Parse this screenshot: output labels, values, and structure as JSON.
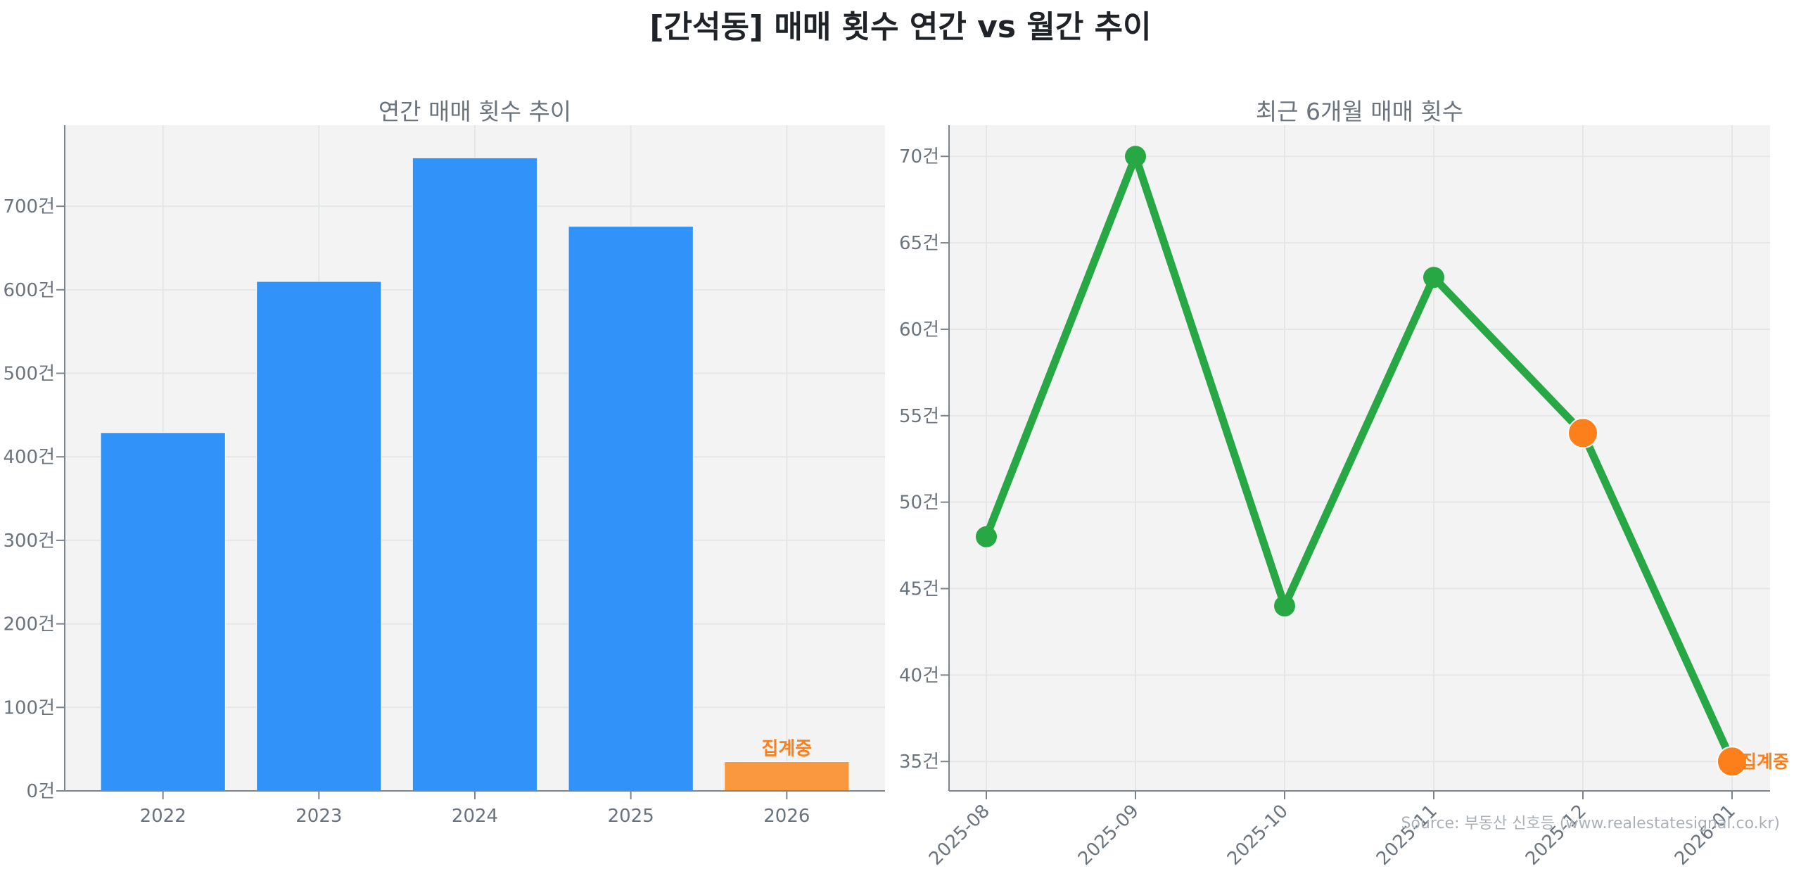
{
  "suptitle": "[간석동] 매매 횟수 연간 vs 월간 추이",
  "source": "Source: 부동산 신호등 (www.realestatesignal.co.kr)",
  "colors": {
    "bar": "#3192fa",
    "bar_partial": "#fa983f",
    "line": "#28a745",
    "marker_highlight": "#fd7f1b",
    "annotation": "#fd7f1b",
    "axes_bg": "#f3f3f3",
    "grid": "#e4e6e8",
    "tick_text": "#6b737c"
  },
  "chart_data": [
    {
      "type": "bar",
      "title": "연간 매매 횟수 추이",
      "categories": [
        "2022",
        "2023",
        "2024",
        "2025",
        "2026"
      ],
      "values": [
        429,
        610,
        758,
        676,
        35
      ],
      "xlabel": "",
      "ylabel": "",
      "ylim": [
        0,
        797
      ],
      "yticks": [
        0,
        100,
        200,
        300,
        400,
        500,
        600,
        700
      ],
      "ytick_suffix": "건",
      "grid": true,
      "annotations": [
        {
          "category": "2026",
          "text": "집계중"
        }
      ],
      "partial_categories": [
        "2026"
      ]
    },
    {
      "type": "line",
      "title": "최근 6개월 매매 횟수",
      "categories": [
        "2025-08",
        "2025-09",
        "2025-10",
        "2025-11",
        "2025-12",
        "2026-01"
      ],
      "values": [
        48,
        70,
        44,
        63,
        54,
        35
      ],
      "xlabel": "",
      "ylabel": "",
      "ylim": [
        33.3,
        71.8
      ],
      "yticks": [
        35,
        40,
        45,
        50,
        55,
        60,
        65,
        70
      ],
      "ytick_suffix": "건",
      "grid": true,
      "highlight_points": [
        "2025-12",
        "2026-01"
      ],
      "annotations": [
        {
          "category": "2026-01",
          "text": "집계중"
        }
      ]
    }
  ]
}
